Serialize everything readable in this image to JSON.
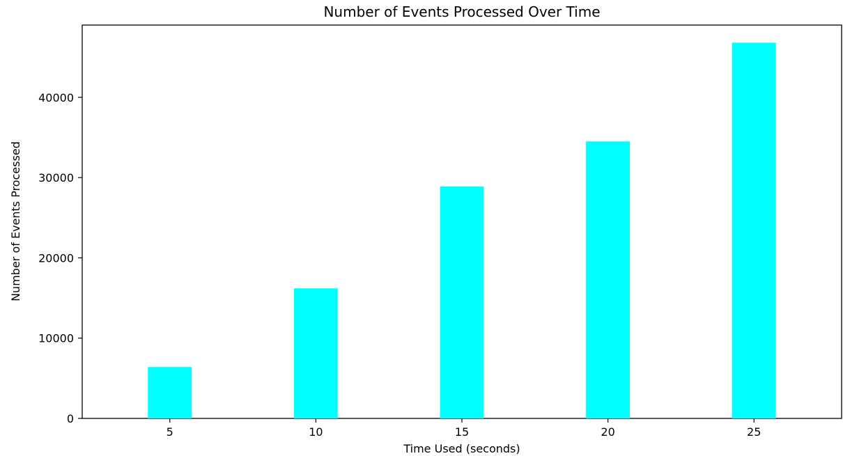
{
  "chart_data": {
    "type": "bar",
    "title": "Number of Events Processed Over Time",
    "xlabel": "Time Used (seconds)",
    "ylabel": "Number of Events Processed",
    "categories": [
      "5",
      "10",
      "15",
      "20",
      "25"
    ],
    "values": [
      6400,
      16200,
      28900,
      34500,
      46800
    ],
    "ylim": [
      0,
      49000
    ],
    "yticks": [
      0,
      10000,
      20000,
      30000,
      40000
    ],
    "ytick_labels": [
      "0",
      "10000",
      "20000",
      "30000",
      "40000"
    ],
    "bar_color": "#00FFFF",
    "grid": false,
    "legend": "none"
  }
}
